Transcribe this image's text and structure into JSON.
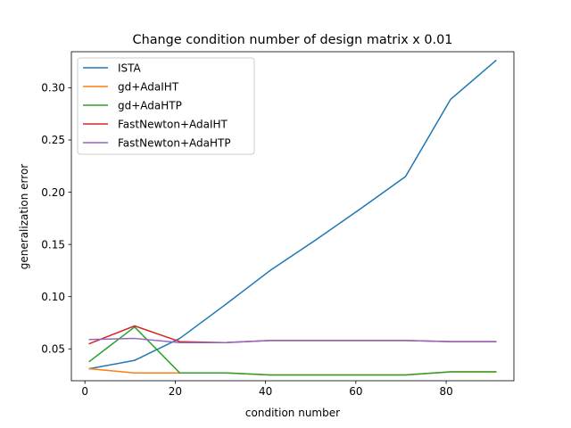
{
  "chart_data": {
    "type": "line",
    "title": "Change condition number of design matrix x 0.01",
    "xlabel": "condition number",
    "ylabel": "generalization error",
    "xlim": [
      -3,
      95
    ],
    "ylim": [
      0.0195,
      0.3345
    ],
    "xticks": [
      0,
      20,
      40,
      60,
      80
    ],
    "xtick_labels": [
      "0",
      "20",
      "40",
      "60",
      "80"
    ],
    "yticks": [
      0.05,
      0.1,
      0.15,
      0.2,
      0.25,
      0.3
    ],
    "ytick_labels": [
      "0.05",
      "0.10",
      "0.15",
      "0.20",
      "0.25",
      "0.30"
    ],
    "grid": false,
    "legend_position": "top-left",
    "x": [
      1,
      11,
      21,
      31,
      41,
      51,
      61,
      71,
      81,
      91
    ],
    "series": [
      {
        "name": "ISTA",
        "color": "#1f77b4",
        "values": [
          0.031,
          0.039,
          0.06,
          0.092,
          0.125,
          0.154,
          0.184,
          0.215,
          0.289,
          0.326
        ]
      },
      {
        "name": "gd+AdaIHT",
        "color": "#ff7f0e",
        "values": [
          0.031,
          0.027,
          0.027,
          0.027,
          0.025,
          0.025,
          0.025,
          0.025,
          0.028,
          0.028
        ]
      },
      {
        "name": "gd+AdaHTP",
        "color": "#2ca02c",
        "values": [
          0.038,
          0.071,
          0.027,
          0.027,
          0.025,
          0.025,
          0.025,
          0.025,
          0.028,
          0.028
        ]
      },
      {
        "name": "FastNewton+AdaIHT",
        "color": "#d62728",
        "values": [
          0.055,
          0.072,
          0.057,
          0.056,
          0.058,
          0.058,
          0.058,
          0.058,
          0.057,
          0.057
        ]
      },
      {
        "name": "FastNewton+AdaHTP",
        "color": "#9467bd",
        "values": [
          0.059,
          0.06,
          0.056,
          0.056,
          0.058,
          0.058,
          0.058,
          0.058,
          0.057,
          0.057
        ]
      }
    ]
  }
}
